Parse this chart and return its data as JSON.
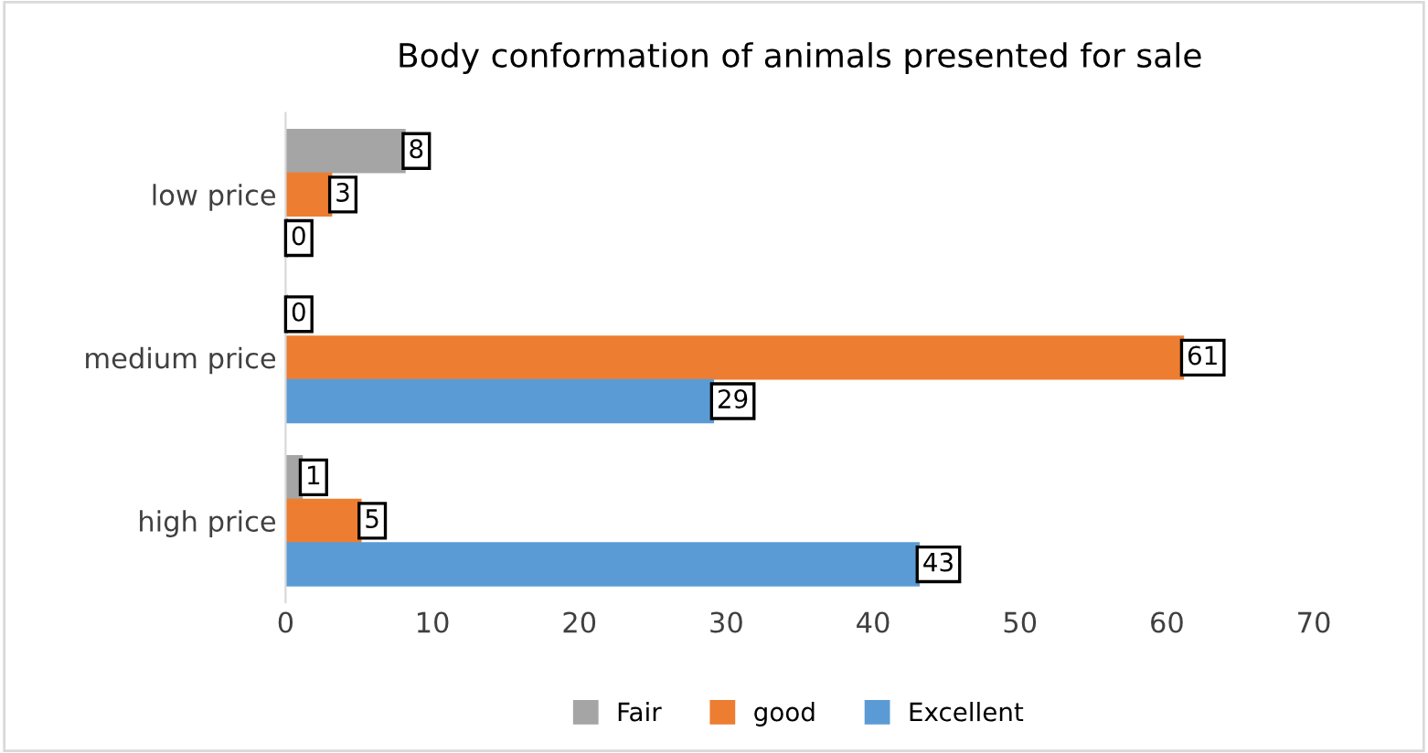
{
  "chart_data": {
    "type": "bar",
    "orientation": "horizontal",
    "title": "Body conformation of animals presented for sale",
    "categories": [
      "low price",
      "medium price",
      "high price"
    ],
    "series": [
      {
        "name": "Fair",
        "color": "#a5a5a5",
        "values": [
          8,
          0,
          1
        ]
      },
      {
        "name": "good",
        "color": "#ed7d31",
        "values": [
          3,
          61,
          5
        ]
      },
      {
        "name": "Excellent",
        "color": "#5b9bd5",
        "values": [
          0,
          29,
          43
        ]
      }
    ],
    "xlim": [
      0,
      70
    ],
    "xticks": [
      0,
      10,
      20,
      30,
      40,
      50,
      60,
      70
    ],
    "grid": false,
    "legend": "bottom",
    "data_labels": true
  }
}
